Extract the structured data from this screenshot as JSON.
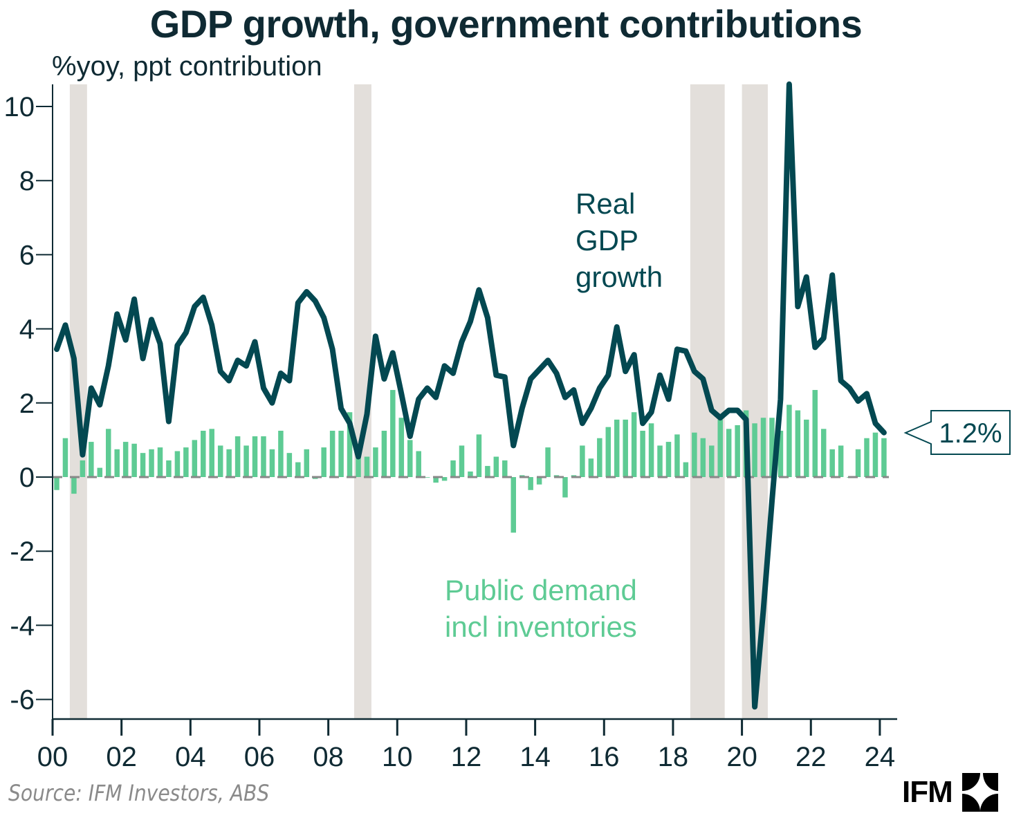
{
  "header": {
    "title": "GDP growth, government contributions",
    "subtitle": "%yoy, ppt contribution"
  },
  "footer": {
    "source": "Source: IFM Investors, ABS",
    "logo_text": "IFM",
    "logo_icon": "ifm-logo-icon"
  },
  "colors": {
    "gdp_line": "#034851",
    "public_bars": "#5ecb94",
    "recession_shade": "#e3dfdb",
    "axis": "#0f2a33",
    "zero_line": "#888888"
  },
  "chart_data": {
    "type": "bar+line",
    "title": "GDP growth, government contributions",
    "ylabel": "%yoy, ppt contribution",
    "xlabel": "",
    "frequency": "quarterly",
    "start": "2000Q1",
    "end": "2024Q1",
    "ylim": [
      -6.6,
      10.6
    ],
    "xlim_years": [
      2000,
      2024.5
    ],
    "y_ticks": [
      -6,
      -4,
      -2,
      0,
      2,
      4,
      6,
      8,
      10
    ],
    "y_tick_labels": [
      "-6",
      "-4",
      "-2",
      "0",
      "2",
      "4",
      "6",
      "8",
      "10"
    ],
    "x_ticks": [
      2000,
      2002,
      2004,
      2006,
      2008,
      2010,
      2012,
      2014,
      2016,
      2018,
      2020,
      2022,
      2024
    ],
    "x_tick_labels": [
      "00",
      "02",
      "04",
      "06",
      "08",
      "10",
      "12",
      "14",
      "16",
      "18",
      "20",
      "22",
      "24"
    ],
    "grid": false,
    "zero_line": "dashed",
    "shaded_periods": [
      {
        "start": 2000.5,
        "end": 2001.0
      },
      {
        "start": 2008.75,
        "end": 2009.25
      },
      {
        "start": 2018.5,
        "end": 2019.5
      },
      {
        "start": 2020.0,
        "end": 2020.75
      }
    ],
    "series": [
      {
        "name": "Real GDP growth",
        "kind": "line",
        "label": [
          "Real",
          "GDP",
          "growth"
        ],
        "values": [
          3.45,
          4.1,
          3.2,
          0.6,
          2.4,
          1.95,
          3.0,
          4.4,
          3.7,
          4.8,
          3.2,
          4.25,
          3.6,
          1.5,
          3.55,
          3.9,
          4.6,
          4.85,
          4.1,
          2.85,
          2.6,
          3.15,
          3.0,
          3.65,
          2.4,
          2.0,
          2.8,
          2.6,
          4.7,
          5.0,
          4.75,
          4.3,
          3.45,
          1.85,
          1.45,
          0.55,
          1.7,
          3.8,
          2.65,
          3.35,
          2.25,
          1.1,
          2.1,
          2.4,
          2.15,
          3.0,
          2.8,
          3.65,
          4.2,
          5.05,
          4.3,
          2.75,
          2.7,
          0.85,
          1.85,
          2.65,
          2.9,
          3.15,
          2.8,
          2.15,
          2.35,
          1.45,
          1.85,
          2.4,
          2.75,
          4.05,
          2.85,
          3.3,
          1.45,
          1.75,
          2.75,
          2.1,
          3.45,
          3.4,
          2.85,
          2.65,
          1.8,
          1.6,
          1.8,
          1.8,
          1.55,
          -6.2,
          -3.6,
          -0.65,
          2.1,
          10.6,
          4.6,
          5.4,
          3.5,
          3.75,
          5.45,
          2.6,
          2.4,
          2.05,
          2.25,
          1.45,
          1.2
        ]
      },
      {
        "name": "Public demand incl inventories",
        "kind": "bar",
        "label": [
          "Public demand",
          "incl inventories"
        ],
        "values": [
          -0.35,
          1.05,
          -0.45,
          0.45,
          0.95,
          0.25,
          1.3,
          0.75,
          0.95,
          0.9,
          0.65,
          0.75,
          0.8,
          0.45,
          0.7,
          0.8,
          1.0,
          1.25,
          1.3,
          0.85,
          0.75,
          1.1,
          0.85,
          1.1,
          1.1,
          0.75,
          1.25,
          0.65,
          0.4,
          0.75,
          -0.05,
          0.8,
          1.25,
          1.25,
          1.75,
          0.65,
          0.55,
          0.8,
          1.25,
          2.35,
          1.6,
          1.0,
          0.7,
          0.0,
          -0.15,
          -0.1,
          0.45,
          0.85,
          0.15,
          1.15,
          0.3,
          0.55,
          0.45,
          -1.5,
          0.05,
          -0.35,
          -0.2,
          0.8,
          0.05,
          -0.55,
          0.05,
          0.85,
          0.5,
          1.05,
          1.35,
          1.55,
          1.55,
          1.75,
          1.25,
          1.45,
          0.85,
          0.95,
          1.15,
          0.4,
          1.2,
          1.05,
          0.85,
          1.55,
          1.3,
          1.4,
          1.8,
          1.45,
          1.6,
          1.6,
          1.25,
          1.95,
          1.8,
          1.55,
          2.35,
          1.3,
          0.75,
          0.85,
          0.0,
          0.75,
          1.05,
          1.2,
          1.05
        ]
      }
    ],
    "callout": {
      "text": "1.2%",
      "series": "Real GDP growth",
      "point": "2024Q1"
    }
  }
}
